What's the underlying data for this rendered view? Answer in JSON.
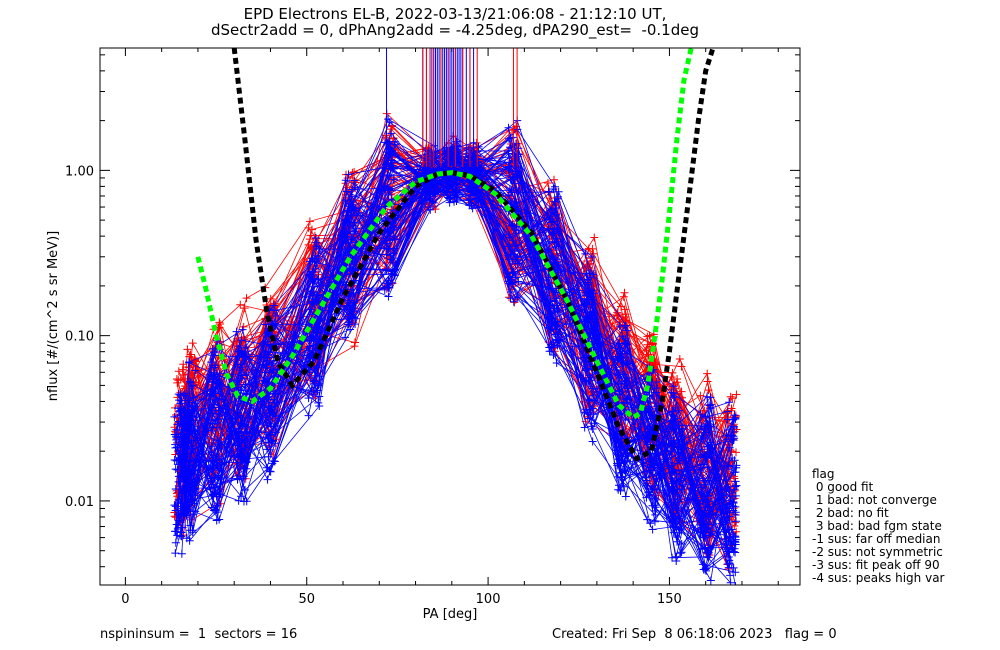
{
  "title_line1": "EPD Electrons EL-B, 2022-03-13/21:06:08 - 21:12:10 UT,",
  "title_line2": "dSectr2add = 0, dPhAng2add = -4.25deg, dPA290_est=  -0.1deg",
  "footer_left": "nspininsum =  1  sectors = 16",
  "footer_right": "Created: Fri Sep  8 06:18:06 2023   flag = 0",
  "legend": {
    "title": "flag",
    "items": [
      " 0 good fit",
      " 1 bad: not converge",
      " 2 bad: no fit",
      " 3 bad: bad fgm state",
      "-1 sus: far off median",
      "-2 sus: not symmetric",
      "-3 sus: fit peak off 90",
      "-4 sus: peaks high var"
    ]
  },
  "colors": {
    "red": "#ff0000",
    "blue": "#0000ff",
    "black": "#000000",
    "green": "#00ff00"
  },
  "chart_data": {
    "type": "line",
    "xlabel": "PA [deg]",
    "ylabel": "nflux [#/(cm^2 s sr MeV)]",
    "xlim": [
      -7,
      186
    ],
    "ylim": [
      0.0031,
      5.5
    ],
    "yscale": "log",
    "xticks": [
      0,
      50,
      100,
      150
    ],
    "xtick_labels": [
      "0",
      "50",
      "100",
      "150"
    ],
    "yticks": [
      0.01,
      0.1,
      1.0
    ],
    "ytick_labels": [
      "0.01",
      "0.10",
      "1.00"
    ],
    "grid": false,
    "pa_bins": [
      15,
      18,
      25,
      32,
      40,
      52,
      62,
      73,
      84,
      90,
      96,
      107,
      118,
      128,
      137,
      145,
      152,
      160,
      167
    ],
    "series": [
      {
        "color": "red",
        "style": "thin line with + markers",
        "profile": [
          0.022,
          0.028,
          0.035,
          0.045,
          0.06,
          0.14,
          0.32,
          0.62,
          0.92,
          1.0,
          0.92,
          0.55,
          0.26,
          0.11,
          0.055,
          0.032,
          0.021,
          0.016,
          0.014
        ],
        "count": 70
      },
      {
        "color": "blue",
        "style": "thin line with + markers",
        "profile": [
          0.016,
          0.02,
          0.026,
          0.034,
          0.05,
          0.12,
          0.3,
          0.6,
          0.92,
          1.0,
          0.95,
          0.58,
          0.24,
          0.085,
          0.038,
          0.022,
          0.015,
          0.012,
          0.011
        ],
        "count": 90
      },
      {
        "color": "black",
        "style": "thick dashed fit",
        "x": [
          30,
          33,
          36,
          39,
          42,
          46,
          52,
          60,
          70,
          80,
          86,
          90,
          95,
          102,
          112,
          122,
          130,
          136,
          141,
          145,
          148,
          150,
          152,
          155,
          158,
          160,
          162
        ],
        "y": [
          5.5,
          1.5,
          0.38,
          0.14,
          0.07,
          0.05,
          0.07,
          0.17,
          0.42,
          0.8,
          0.95,
          0.97,
          0.93,
          0.75,
          0.42,
          0.16,
          0.06,
          0.028,
          0.018,
          0.02,
          0.04,
          0.08,
          0.18,
          0.6,
          2.0,
          4.0,
          5.5
        ]
      },
      {
        "color": "green",
        "style": "thick dashed fit",
        "x": [
          20,
          22,
          25,
          28,
          31,
          35,
          40,
          46,
          54,
          62,
          72,
          80,
          86,
          90,
          95,
          102,
          112,
          122,
          130,
          136,
          140,
          142,
          144,
          146,
          148,
          150,
          152,
          154,
          156
        ],
        "y": [
          0.3,
          0.2,
          0.1,
          0.058,
          0.043,
          0.04,
          0.048,
          0.075,
          0.15,
          0.3,
          0.6,
          0.85,
          0.95,
          0.97,
          0.92,
          0.72,
          0.4,
          0.16,
          0.07,
          0.038,
          0.032,
          0.034,
          0.05,
          0.1,
          0.22,
          0.55,
          1.5,
          3.5,
          5.5
        ]
      }
    ],
    "spikes": {
      "blue": [
        72,
        82,
        83,
        84,
        84.5,
        85,
        85.5,
        86,
        86.5,
        87,
        87.5,
        88,
        88.5,
        89,
        89.5,
        90,
        90.5,
        91,
        91.5,
        92,
        92.5,
        93,
        94,
        95,
        96
      ],
      "red": [
        82,
        83,
        84,
        85,
        87,
        89,
        91,
        93,
        95,
        97,
        107,
        108
      ]
    }
  }
}
